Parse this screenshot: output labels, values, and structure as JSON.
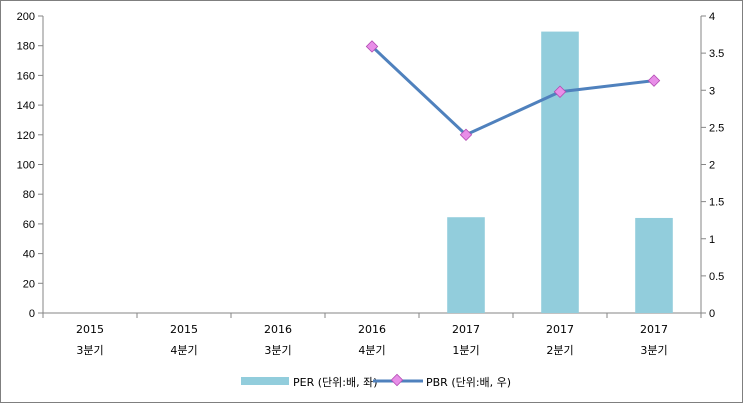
{
  "chart_data": {
    "type": "bar+line",
    "categories": [
      [
        "2015",
        "3분기"
      ],
      [
        "2015",
        "4분기"
      ],
      [
        "2016",
        "3분기"
      ],
      [
        "2016",
        "4분기"
      ],
      [
        "2017",
        "1분기"
      ],
      [
        "2017",
        "2분기"
      ],
      [
        "2017",
        "3분기"
      ]
    ],
    "series": [
      {
        "name": "PER (단위:배, 좌)",
        "type": "bar",
        "axis": "left",
        "color": "#92cddc",
        "values": [
          null,
          null,
          null,
          null,
          64.5,
          189.5,
          64
        ]
      },
      {
        "name": "PBR (단위:배, 우)",
        "type": "line",
        "axis": "right",
        "color": "#4f81bd",
        "marker_color": "#e88ee8",
        "values": [
          null,
          null,
          null,
          3.59,
          2.4,
          2.98,
          3.13
        ]
      }
    ],
    "y_left": {
      "min": 0,
      "max": 200,
      "step": 20,
      "ticks": [
        "0",
        "20",
        "40",
        "60",
        "80",
        "100",
        "120",
        "140",
        "160",
        "180",
        "200"
      ]
    },
    "y_right": {
      "min": 0,
      "max": 4,
      "step": 0.5,
      "ticks": [
        "0",
        "0.5",
        "1",
        "1.5",
        "2",
        "2.5",
        "3",
        "3.5",
        "4"
      ]
    },
    "grid": false,
    "legend_position": "bottom"
  }
}
